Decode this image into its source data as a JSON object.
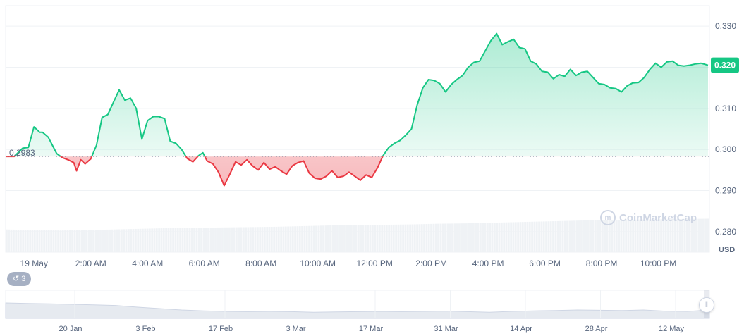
{
  "chart_data": {
    "type": "area",
    "currency_label": "USD",
    "open_price_label": "0.2983",
    "open_price": 0.2983,
    "current_price_label": "0.320",
    "current_price": 0.3205,
    "ylim": [
      0.275,
      0.335
    ],
    "y_ticks": [
      {
        "value": 0.33,
        "label": "0.330"
      },
      {
        "value": 0.32,
        "label": "0.320"
      },
      {
        "value": 0.31,
        "label": "0.310"
      },
      {
        "value": 0.3,
        "label": "0.300"
      },
      {
        "value": 0.29,
        "label": "0.290"
      },
      {
        "value": 0.28,
        "label": "0.280"
      }
    ],
    "x_range_hours": [
      -1,
      23.8
    ],
    "x_ticks": [
      {
        "hour": 0,
        "label": "19 May"
      },
      {
        "hour": 2,
        "label": "2:00 AM"
      },
      {
        "hour": 4,
        "label": "4:00 AM"
      },
      {
        "hour": 6,
        "label": "6:00 AM"
      },
      {
        "hour": 8,
        "label": "8:00 AM"
      },
      {
        "hour": 10,
        "label": "10:00 AM"
      },
      {
        "hour": 12,
        "label": "12:00 PM"
      },
      {
        "hour": 14,
        "label": "2:00 PM"
      },
      {
        "hour": 16,
        "label": "4:00 PM"
      },
      {
        "hour": 18,
        "label": "6:00 PM"
      },
      {
        "hour": 20,
        "label": "8:00 PM"
      },
      {
        "hour": 22,
        "label": "10:00 PM"
      }
    ],
    "series": [
      {
        "x_hours": [
          -1.0,
          -0.7,
          -0.4,
          -0.2,
          0.0,
          0.2,
          0.3,
          0.5,
          0.8,
          1.0,
          1.2,
          1.4,
          1.5,
          1.65,
          1.8,
          2.0,
          2.2,
          2.4,
          2.6,
          2.8,
          3.0,
          3.2,
          3.4,
          3.6,
          3.8,
          4.0,
          4.2,
          4.4,
          4.6,
          4.8,
          5.0,
          5.2,
          5.4,
          5.6,
          5.8,
          5.95,
          6.1,
          6.3,
          6.5,
          6.7,
          6.9,
          7.1,
          7.3,
          7.5,
          7.7,
          7.9,
          8.1,
          8.3,
          8.5,
          8.7,
          8.9,
          9.1,
          9.3,
          9.5,
          9.7,
          9.9,
          10.1,
          10.3,
          10.5,
          10.7,
          10.9,
          11.1,
          11.3,
          11.5,
          11.7,
          11.9,
          12.1,
          12.3,
          12.5,
          12.7,
          12.9,
          13.1,
          13.3,
          13.5,
          13.7,
          13.9,
          14.1,
          14.3,
          14.5,
          14.7,
          14.9,
          15.1,
          15.3,
          15.5,
          15.7,
          15.9,
          16.1,
          16.3,
          16.5,
          16.7,
          16.9,
          17.1,
          17.3,
          17.5,
          17.7,
          17.9,
          18.1,
          18.3,
          18.5,
          18.7,
          18.9,
          19.1,
          19.3,
          19.5,
          19.7,
          19.9,
          20.1,
          20.3,
          20.5,
          20.7,
          20.9,
          21.1,
          21.3,
          21.5,
          21.7,
          21.9,
          22.1,
          22.3,
          22.5,
          22.7,
          22.9,
          23.1,
          23.3,
          23.5,
          23.75
        ],
        "y": [
          0.2983,
          0.2983,
          0.3003,
          0.3005,
          0.3055,
          0.3042,
          0.3042,
          0.303,
          0.299,
          0.298,
          0.2975,
          0.2968,
          0.2948,
          0.2975,
          0.2965,
          0.2977,
          0.301,
          0.3078,
          0.3085,
          0.3115,
          0.3145,
          0.312,
          0.3125,
          0.31,
          0.3025,
          0.307,
          0.308,
          0.308,
          0.3075,
          0.302,
          0.3015,
          0.3,
          0.2978,
          0.297,
          0.2985,
          0.2992,
          0.2972,
          0.2965,
          0.2945,
          0.2912,
          0.294,
          0.297,
          0.2962,
          0.2975,
          0.296,
          0.295,
          0.2968,
          0.2952,
          0.2958,
          0.2948,
          0.294,
          0.296,
          0.2968,
          0.2972,
          0.2942,
          0.293,
          0.2928,
          0.2935,
          0.2948,
          0.2932,
          0.2935,
          0.2945,
          0.2935,
          0.2925,
          0.2938,
          0.2932,
          0.2955,
          0.2985,
          0.3005,
          0.3015,
          0.3022,
          0.3035,
          0.305,
          0.3108,
          0.315,
          0.317,
          0.3168,
          0.316,
          0.314,
          0.3158,
          0.317,
          0.318,
          0.32,
          0.3212,
          0.3215,
          0.324,
          0.3265,
          0.3282,
          0.3255,
          0.3262,
          0.3268,
          0.3248,
          0.3245,
          0.3215,
          0.3208,
          0.319,
          0.3188,
          0.3172,
          0.3182,
          0.3178,
          0.3195,
          0.318,
          0.3188,
          0.319,
          0.3175,
          0.316,
          0.3158,
          0.315,
          0.3148,
          0.314,
          0.3155,
          0.3162,
          0.3163,
          0.3175,
          0.3195,
          0.321,
          0.32,
          0.3213,
          0.3215,
          0.3205,
          0.3203,
          0.3205,
          0.3208,
          0.321,
          0.3205
        ]
      }
    ],
    "volume_series": [
      0.68,
      0.66,
      0.65,
      0.66,
      0.68,
      0.7,
      0.72,
      0.73,
      0.74,
      0.75,
      0.76,
      0.78,
      0.8,
      0.81,
      0.82,
      0.83,
      0.85,
      0.86,
      0.88,
      0.9,
      0.92,
      0.94,
      0.96,
      0.97,
      0.98,
      0.99,
      1.0
    ],
    "navigator": {
      "ticks": [
        "20 Jan",
        "3 Feb",
        "17 Feb",
        "3 Mar",
        "17 Mar",
        "31 Mar",
        "14 Apr",
        "28 Apr",
        "12 May"
      ],
      "values": [
        0.55,
        0.53,
        0.52,
        0.5,
        0.48,
        0.46,
        0.4,
        0.35,
        0.3,
        0.27,
        0.25,
        0.24,
        0.25,
        0.24,
        0.22,
        0.23,
        0.24,
        0.25,
        0.24,
        0.25,
        0.26,
        0.24,
        0.22,
        0.25,
        0.27,
        0.28,
        0.3,
        0.29,
        0.28,
        0.3,
        0.26,
        0.25,
        0.3
      ]
    },
    "colors": {
      "up": "#16c784",
      "down": "#ea3943",
      "grid": "#eff2f5",
      "volume": "#eff2f5",
      "badge": "#16c784"
    }
  },
  "history": {
    "count": "3",
    "icon": "history-icon"
  },
  "watermark": {
    "text": "CoinMarketCap",
    "icon": "coinmarketcap-logo-icon"
  },
  "navigator_handle": {
    "icon": "drag-handle-icon",
    "glyph": "‖"
  }
}
